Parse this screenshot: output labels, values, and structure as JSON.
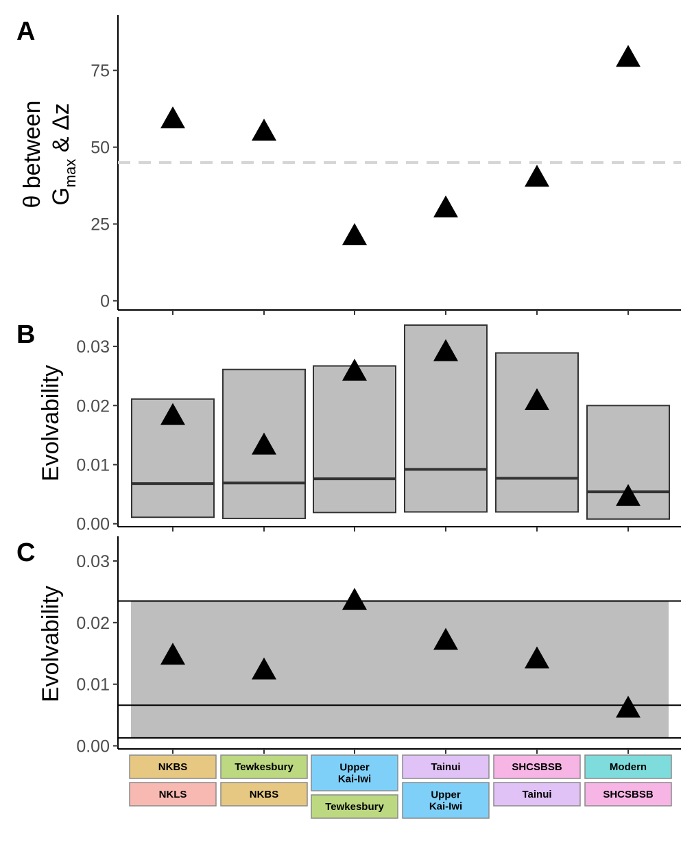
{
  "colors": {
    "NKBS": "#e6c882",
    "NKLS": "#f8b9b2",
    "Tewkesbury": "#bcd881",
    "Upper Kai-Iwi": "#7fd0f8",
    "Tainui": "#e0c2f6",
    "SHCSBSB": "#f7b5e6",
    "Modern": "#7fdcdc",
    "box_fill": "#bebebe",
    "dashed": "#d6d6d6"
  },
  "chart_data": [
    {
      "panel": "A",
      "type": "scatter",
      "ylabel_line1": "θ between",
      "ylabel_line2_main": "G",
      "ylabel_line2_sub": "max",
      "ylabel_line2_rest": " & Δz",
      "ylim": [
        -3,
        93
      ],
      "yticks": [
        0,
        25,
        50,
        75
      ],
      "reference_line": 45,
      "values": [
        59,
        55,
        21,
        30,
        40,
        79
      ]
    },
    {
      "panel": "B",
      "type": "bar",
      "ylabel": "Evolvability",
      "ylim": [
        -0.0005,
        0.035
      ],
      "yticks": [
        0.0,
        0.01,
        0.02,
        0.03
      ],
      "ytick_labels": [
        "0.00",
        "0.01",
        "0.02",
        "0.03"
      ],
      "boxes": [
        {
          "low": 0.0011,
          "median": 0.0068,
          "high": 0.0211
        },
        {
          "low": 0.0009,
          "median": 0.0069,
          "high": 0.0261
        },
        {
          "low": 0.0019,
          "median": 0.0076,
          "high": 0.0267
        },
        {
          "low": 0.002,
          "median": 0.0092,
          "high": 0.0336
        },
        {
          "low": 0.002,
          "median": 0.0077,
          "high": 0.0289
        },
        {
          "low": 0.0008,
          "median": 0.0054,
          "high": 0.02
        }
      ],
      "values": [
        0.0182,
        0.0132,
        0.0257,
        0.029,
        0.0207,
        0.0045
      ]
    },
    {
      "panel": "C",
      "type": "scatter",
      "ylabel": "Evolvability",
      "ylim": [
        -0.0005,
        0.034
      ],
      "yticks": [
        0.0,
        0.01,
        0.02,
        0.03
      ],
      "ytick_labels": [
        "0.00",
        "0.01",
        "0.02",
        "0.03"
      ],
      "band": {
        "low": 0.0013,
        "median": 0.0066,
        "high": 0.0235
      },
      "values": [
        0.0146,
        0.0122,
        0.0235,
        0.017,
        0.014,
        0.006
      ]
    }
  ],
  "groups": [
    {
      "top": "NKBS",
      "bottom": "NKLS"
    },
    {
      "top": "Tewkesbury",
      "bottom": "NKBS"
    },
    {
      "top": "Upper Kai-Iwi",
      "bottom": "Tewkesbury"
    },
    {
      "top": "Tainui",
      "bottom": "Upper Kai-Iwi"
    },
    {
      "top": "SHCSBSB",
      "bottom": "Tainui"
    },
    {
      "top": "Modern",
      "bottom": "SHCSBSB"
    }
  ],
  "display_labels": {
    "Upper Kai-Iwi": [
      "Upper",
      "Kai-Iwi"
    ]
  }
}
